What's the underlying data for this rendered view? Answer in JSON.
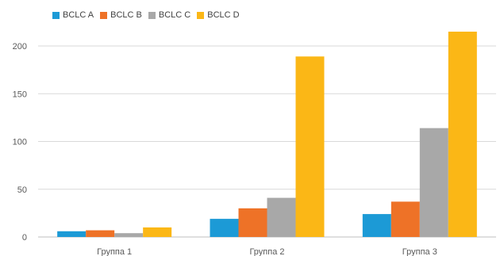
{
  "chart_data": {
    "type": "bar",
    "categories": [
      "Группа 1",
      "Группа 2",
      "Группа 3"
    ],
    "series": [
      {
        "name": "BCLC A",
        "color": "#1C9AD6",
        "values": [
          6,
          19,
          24
        ]
      },
      {
        "name": "BCLC B",
        "color": "#EE7227",
        "values": [
          7,
          30,
          37
        ]
      },
      {
        "name": "BCLC C",
        "color": "#A8A8A8",
        "values": [
          4,
          41,
          114
        ]
      },
      {
        "name": "BCLC D",
        "color": "#FBB716",
        "values": [
          10,
          189,
          215
        ]
      }
    ],
    "ylim": [
      0,
      200
    ],
    "yticks": [
      "0",
      "50",
      "100",
      "150",
      "200"
    ],
    "grid": true,
    "legend_position": "top-left"
  }
}
